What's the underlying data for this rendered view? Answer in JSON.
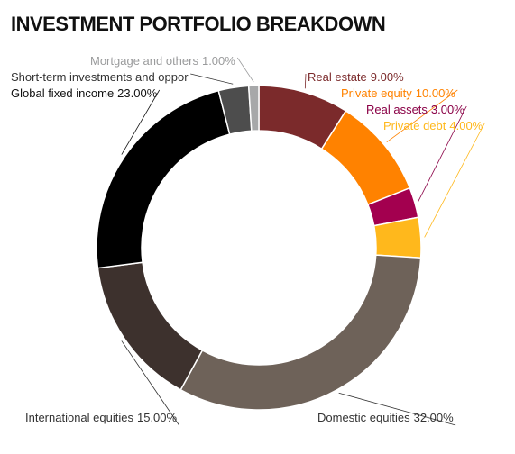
{
  "chart_data": {
    "type": "donut",
    "title": "INVESTMENT PORTFOLIO BREAKDOWN",
    "categories": [
      "Real estate",
      "Private equity",
      "Real assets",
      "Private debt",
      "Domestic equities",
      "International equities",
      "Global fixed income",
      "Short-term investments and oppor",
      "Mortgage and others"
    ],
    "values": [
      9,
      10,
      3,
      4,
      32,
      15,
      23,
      3,
      1
    ],
    "value_labels": [
      "9.00%",
      "10.00%",
      "3.00%",
      "4.00%",
      "32.00%",
      "15.00%",
      "23.00%",
      null,
      "1.00%"
    ],
    "colors": [
      "#7b2a2b",
      "#ff8200",
      "#a3004f",
      "#ffb81c",
      "#6e6259",
      "#3d312d",
      "#000000",
      "#4d4d4d",
      "#a7a8a9"
    ],
    "label_colors": [
      "#7b2a2b",
      "#ff8200",
      "#8a0046",
      "#ffb81c",
      "#333333",
      "#333333",
      "#111111",
      "#333333",
      "#9a9b9c"
    ]
  }
}
